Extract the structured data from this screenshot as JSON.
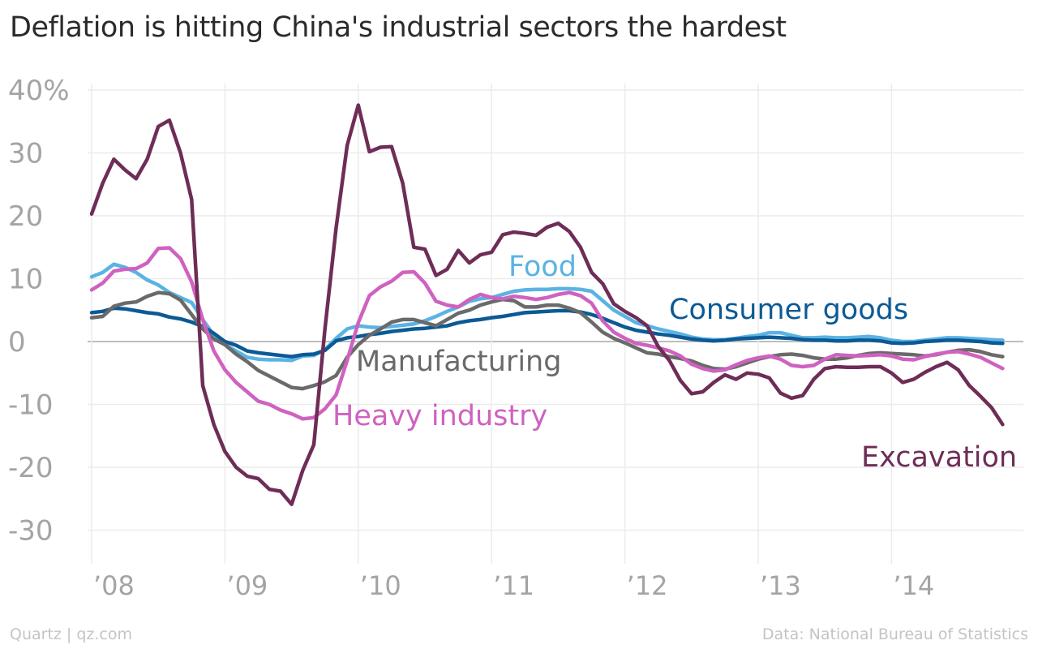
{
  "title": "Deflation is hitting China's industrial sectors the hardest",
  "credit": "Quartz | qz.com",
  "source": "Data: National Bureau of Statistics",
  "chart_data": {
    "type": "line",
    "title": "Deflation is hitting China's industrial sectors the hardest",
    "xlabel": "",
    "ylabel": "",
    "x_start": "2008-01",
    "x_end": "2014-11",
    "xlim": [
      "2008-01",
      "2014-11"
    ],
    "ylim": [
      -35,
      43
    ],
    "y_ticks": [
      40,
      30,
      20,
      10,
      0,
      -10,
      -20,
      -30
    ],
    "y_tick_labels": [
      "40%",
      "30",
      "20",
      "10",
      "0",
      "-10",
      "-20",
      "-30"
    ],
    "x_ticks": [
      "2008-01",
      "2009-01",
      "2010-01",
      "2011-01",
      "2012-01",
      "2013-01",
      "2014-01"
    ],
    "x_tick_labels": [
      "’08",
      "’09",
      "’10",
      "’11",
      "’12",
      "’13",
      "’14"
    ],
    "grid": true,
    "legend": "direct labels on lines",
    "series": [
      {
        "name": "Food",
        "color": "#5bb3e4",
        "values": [
          10.3,
          11,
          12.3,
          11.8,
          11,
          9.8,
          9,
          7.8,
          7,
          6.2,
          3.5,
          1,
          -0.5,
          -1.5,
          -2.5,
          -2.8,
          -2.9,
          -2.9,
          -3,
          -2.3,
          -2.2,
          -1.3,
          0.5,
          2,
          2.5,
          2.3,
          2.2,
          2.4,
          2.6,
          2.8,
          3.3,
          4,
          4.8,
          5.5,
          6.4,
          6.8,
          7,
          7.5,
          8,
          8.2,
          8.3,
          8.3,
          8.4,
          8.4,
          8.3,
          8,
          6.5,
          5,
          4,
          3,
          2.5,
          2,
          1.6,
          1.2,
          0.7,
          0.4,
          0.3,
          0.3,
          0.5,
          0.8,
          1,
          1.4,
          1.4,
          1,
          0.6,
          0.6,
          0.7,
          0.6,
          0.6,
          0.7,
          0.8,
          0.6,
          0.2,
          0,
          0,
          0.2,
          0.4,
          0.6,
          0.6,
          0.5,
          0.4,
          0.3,
          0.2
        ]
      },
      {
        "name": "Consumer goods",
        "color": "#0c5a95",
        "values": [
          4.6,
          4.8,
          5.3,
          5.2,
          4.9,
          4.6,
          4.4,
          3.9,
          3.6,
          3.1,
          2.4,
          1.3,
          0,
          -0.6,
          -1.5,
          -1.8,
          -2,
          -2.2,
          -2.4,
          -2.1,
          -2,
          -1.4,
          0.1,
          0.6,
          0.8,
          1.1,
          1.3,
          1.6,
          1.8,
          2,
          2.1,
          2.3,
          2.5,
          3,
          3.3,
          3.5,
          3.8,
          4,
          4.3,
          4.6,
          4.7,
          4.8,
          4.9,
          4.9,
          4.7,
          4.3,
          3.7,
          3,
          2.3,
          1.8,
          1.5,
          1.2,
          1,
          0.7,
          0.4,
          0.2,
          0.1,
          0.2,
          0.4,
          0.5,
          0.6,
          0.7,
          0.6,
          0.5,
          0.3,
          0.2,
          0.2,
          0.1,
          0.1,
          0.2,
          0.2,
          0.1,
          -0.2,
          -0.3,
          -0.2,
          0,
          0.1,
          0.2,
          0.2,
          0.1,
          0,
          -0.2,
          -0.3
        ]
      },
      {
        "name": "Manufacturing",
        "color": "#6a6a6a",
        "values": [
          3.8,
          4,
          5.6,
          6.1,
          6.3,
          7.2,
          7.8,
          7.6,
          6.6,
          4.3,
          2,
          0.4,
          -0.5,
          -2,
          -3.2,
          -4.6,
          -5.5,
          -6.4,
          -7.3,
          -7.5,
          -7,
          -6.4,
          -5.4,
          -2.5,
          -0.5,
          1,
          2,
          3.1,
          3.5,
          3.5,
          3,
          2.5,
          3.5,
          4.5,
          5,
          5.8,
          6.3,
          6.7,
          6.5,
          5.5,
          5.5,
          5.8,
          5.8,
          5.3,
          4.6,
          3.1,
          1.5,
          0.5,
          -0.2,
          -1,
          -1.8,
          -2,
          -2.4,
          -2.7,
          -3.1,
          -3.8,
          -4.3,
          -4.4,
          -4,
          -3.4,
          -2.8,
          -2.4,
          -2.1,
          -2,
          -2.2,
          -2.6,
          -2.8,
          -2.8,
          -2.6,
          -2.2,
          -1.9,
          -1.8,
          -1.9,
          -2,
          -2.1,
          -2.3,
          -2.1,
          -1.7,
          -1.4,
          -1.3,
          -1.6,
          -2.1,
          -2.4
        ]
      },
      {
        "name": "Heavy industry",
        "color": "#cf62c0",
        "values": [
          8.2,
          9.3,
          11.2,
          11.5,
          11.6,
          12.5,
          14.8,
          14.9,
          13.2,
          9.5,
          3.5,
          -1.5,
          -4.5,
          -6.5,
          -8,
          -9.5,
          -10,
          -10.9,
          -11.5,
          -12.3,
          -12.1,
          -10.7,
          -8.5,
          -3,
          3,
          7.3,
          8.7,
          9.6,
          11,
          11.1,
          9.3,
          6.4,
          5.8,
          5.5,
          6.7,
          7.5,
          7,
          6.8,
          7.2,
          7,
          6.7,
          7,
          7.5,
          7.8,
          7.3,
          6.1,
          3.3,
          1.5,
          0.5,
          -0.3,
          -0.6,
          -1,
          -1.5,
          -2.3,
          -3.6,
          -4.3,
          -4.7,
          -4.5,
          -3.7,
          -3,
          -2.6,
          -2.3,
          -2.8,
          -3.8,
          -4,
          -3.8,
          -2.8,
          -2.1,
          -2.2,
          -2.3,
          -2.2,
          -2.1,
          -2.3,
          -2.8,
          -2.9,
          -2.4,
          -2,
          -1.7,
          -1.6,
          -2,
          -2.5,
          -3.4,
          -4.3
        ]
      },
      {
        "name": "Excavation",
        "color": "#6e2d57",
        "values": [
          20.3,
          25.2,
          29,
          27.3,
          25.9,
          29,
          34.2,
          35.2,
          30,
          22.6,
          -7,
          -13.2,
          -17.5,
          -20,
          -21.4,
          -21.8,
          -23.5,
          -23.8,
          -25.9,
          -20.5,
          -16.4,
          2,
          18,
          31.2,
          37.6,
          30.2,
          30.9,
          31,
          25.2,
          15,
          14.7,
          10.5,
          11.5,
          14.5,
          12.5,
          13.8,
          14.2,
          17,
          17.4,
          17.2,
          16.9,
          18.2,
          18.8,
          17.5,
          15,
          11,
          9.2,
          6,
          4.8,
          3.8,
          2.5,
          -0.8,
          -3,
          -6.2,
          -8.3,
          -8,
          -6.5,
          -5.3,
          -6,
          -5,
          -5.2,
          -5.8,
          -8.2,
          -9,
          -8.6,
          -6,
          -4.3,
          -4,
          -4.1,
          -4.1,
          -4,
          -4,
          -5,
          -6.5,
          -6,
          -4.9,
          -4,
          -3.3,
          -4.5,
          -7,
          -8.7,
          -10.5,
          -13.2
        ]
      }
    ],
    "annotations": [
      {
        "series": "Food",
        "text": "Food"
      },
      {
        "series": "Consumer goods",
        "text": "Consumer goods"
      },
      {
        "series": "Manufacturing",
        "text": "Manufacturing"
      },
      {
        "series": "Heavy industry",
        "text": "Heavy industry"
      },
      {
        "series": "Excavation",
        "text": "Excavation"
      }
    ]
  }
}
